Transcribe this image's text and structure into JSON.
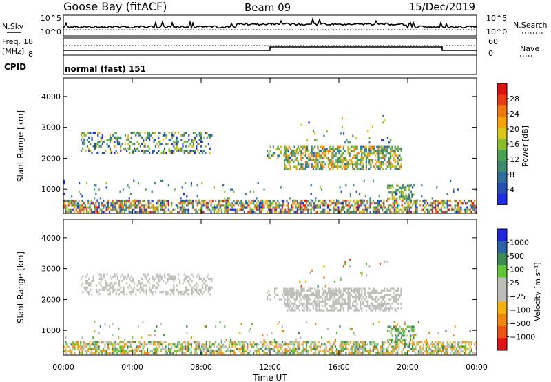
{
  "header": {
    "station": "Goose Bay (fitACF)",
    "beam": "Beam 09",
    "date": "15/Dec/2019"
  },
  "summary": {
    "nsky_label": "N.Sky",
    "nsearch_label": "N.Search",
    "freq_label": "Freq.",
    "freq_unit": "[MHz]",
    "nave_label": "Nave",
    "cpid_label": "CPID",
    "cpid_text": "normal (fast) 151",
    "noise_ticks": [
      "10^5",
      "10^0"
    ],
    "freq_ticks": [
      "18",
      "8"
    ],
    "nave_ticks": [
      "60",
      "0"
    ]
  },
  "colors": {
    "power_scale": [
      "#1e2ee0",
      "#234fb5",
      "#2f6e9a",
      "#3d8a6e",
      "#4aa353",
      "#8bbe2c",
      "#d7c61c",
      "#f7a30e",
      "#f07a10",
      "#e83c14",
      "#d91313"
    ],
    "velocity_scale": [
      "#2228d8",
      "#2e62a6",
      "#3e8a52",
      "#5fc636",
      "#bdbdb8",
      "#bdbdb8",
      "#f3b112",
      "#ef8a12",
      "#ea5513",
      "#e01212"
    ]
  },
  "chart_data": [
    {
      "type": "heatmap",
      "name": "power-panel",
      "ylabel": "Slant Range [km]",
      "yticks": [
        1000,
        2000,
        3000,
        4000
      ],
      "xticks": [
        "00:00",
        "04:00",
        "08:00",
        "12:00",
        "16:00",
        "20:00",
        "00:00"
      ],
      "ylim": [
        200,
        4600
      ],
      "xlim_hours": [
        0,
        24
      ],
      "colorbar": {
        "label": "Power [dB]",
        "ticks": [
          "4",
          "8",
          "12",
          "16",
          "20",
          "24",
          "28"
        ]
      },
      "regions": [
        {
          "t0": 0.0,
          "t1": 24.0,
          "r0": 250,
          "r1": 650,
          "v0": 4,
          "v1": 28,
          "density": 0.6
        },
        {
          "t0": 1.0,
          "t1": 8.6,
          "r0": 2150,
          "r1": 2850,
          "v0": 4,
          "v1": 20,
          "density": 0.35
        },
        {
          "t0": 12.8,
          "t1": 19.6,
          "r0": 1650,
          "r1": 2400,
          "v0": 8,
          "v1": 24,
          "density": 0.6
        },
        {
          "t0": 18.8,
          "t1": 20.3,
          "r0": 700,
          "r1": 1150,
          "v0": 8,
          "v1": 20,
          "density": 0.5
        },
        {
          "t0": 11.8,
          "t1": 13.6,
          "r0": 2000,
          "r1": 2400,
          "v0": 4,
          "v1": 20,
          "density": 0.3
        },
        {
          "t0": 13.6,
          "t1": 19.0,
          "r0": 2400,
          "r1": 3400,
          "v0": 4,
          "v1": 20,
          "density": 0.04
        },
        {
          "t0": 0.0,
          "t1": 24.0,
          "r0": 650,
          "r1": 1300,
          "v0": 4,
          "v1": 16,
          "density": 0.03
        }
      ]
    },
    {
      "type": "heatmap",
      "name": "velocity-panel",
      "ylabel": "Slant Range [km]",
      "yticks": [
        1000,
        2000,
        3000,
        4000
      ],
      "xticks": [
        "00:00",
        "04:00",
        "08:00",
        "12:00",
        "16:00",
        "20:00",
        "00:00"
      ],
      "xlabel": "Time UT",
      "ylim": [
        200,
        4600
      ],
      "xlim_hours": [
        0,
        24
      ],
      "colorbar": {
        "label": "Velocity [m s⁻¹]",
        "ticks": [
          "1000",
          "500",
          "100",
          "25",
          "−25",
          "−100",
          "−500",
          "−1000"
        ]
      },
      "regions": [
        {
          "t0": 0.0,
          "t1": 24.0,
          "r0": 250,
          "r1": 650,
          "v0": 2,
          "v1": 7,
          "density": 0.6
        },
        {
          "t0": 1.0,
          "t1": 8.6,
          "r0": 2150,
          "r1": 2850,
          "v0": 4,
          "v1": 5,
          "density": 0.35
        },
        {
          "t0": 12.8,
          "t1": 19.6,
          "r0": 1650,
          "r1": 2400,
          "v0": 4,
          "v1": 5,
          "density": 0.6
        },
        {
          "t0": 18.8,
          "t1": 20.3,
          "r0": 700,
          "r1": 1150,
          "v0": 2,
          "v1": 4,
          "density": 0.5
        },
        {
          "t0": 11.8,
          "t1": 13.6,
          "r0": 2000,
          "r1": 2400,
          "v0": 4,
          "v1": 5,
          "density": 0.3
        },
        {
          "t0": 13.6,
          "t1": 19.0,
          "r0": 2400,
          "r1": 3400,
          "v0": 2,
          "v1": 8,
          "density": 0.04
        },
        {
          "t0": 0.0,
          "t1": 24.0,
          "r0": 650,
          "r1": 1300,
          "v0": 2,
          "v1": 7,
          "density": 0.03
        }
      ]
    }
  ]
}
